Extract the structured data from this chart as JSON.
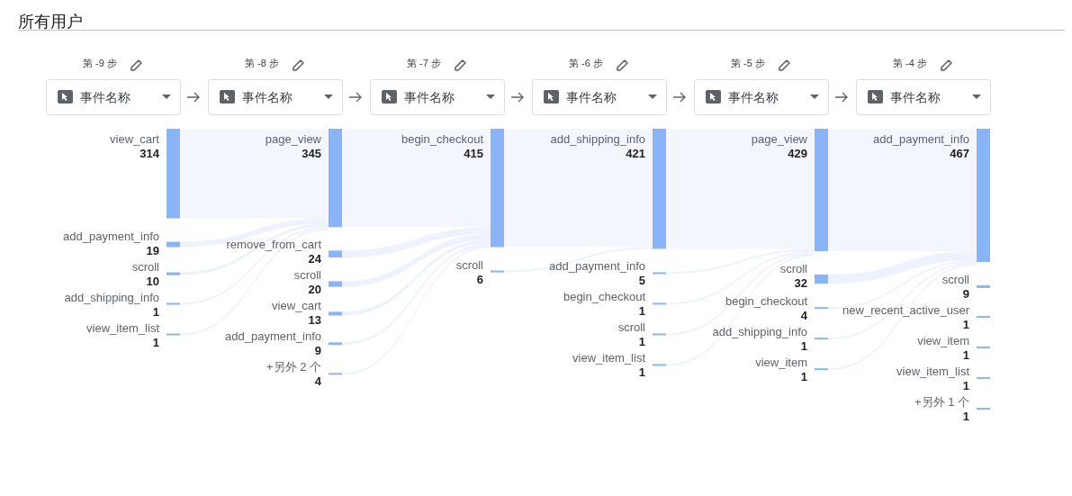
{
  "chart_data": [
    {
      "type": "other",
      "title": "所有用户"
    },
    {
      "type": "other",
      "title": "第 -9 步",
      "subtitle": "事件名称",
      "categories": [
        "view_cart",
        "add_payment_info",
        "scroll",
        "add_shipping_info",
        "view_item_list"
      ],
      "values": [
        314,
        19,
        10,
        1,
        1
      ],
      "color": "#8ab4f8",
      "data_labels": true
    },
    {
      "type": "other",
      "title": "第 -8 步",
      "subtitle": "事件名称",
      "categories": [
        "page_view",
        "remove_from_cart",
        "scroll",
        "view_cart",
        "add_payment_info",
        "+另外 2 个"
      ],
      "values": [
        345,
        24,
        20,
        13,
        9,
        4
      ],
      "color": "#8ab4f8",
      "data_labels": true
    },
    {
      "type": "other",
      "title": "第 -7 步",
      "subtitle": "事件名称",
      "categories": [
        "begin_checkout",
        "scroll"
      ],
      "values": [
        415,
        6
      ],
      "color": "#8ab4f8",
      "data_labels": true
    },
    {
      "type": "other",
      "title": "第 -6 步",
      "subtitle": "事件名称",
      "categories": [
        "add_shipping_info",
        "add_payment_info",
        "begin_checkout",
        "scroll",
        "view_item_list"
      ],
      "values": [
        421,
        5,
        1,
        1,
        1
      ],
      "color": "#8ab4f8",
      "data_labels": true
    },
    {
      "type": "other",
      "title": "第 -5 步",
      "subtitle": "事件名称",
      "categories": [
        "page_view",
        "scroll",
        "begin_checkout",
        "add_shipping_info",
        "view_item"
      ],
      "values": [
        429,
        32,
        4,
        1,
        1
      ],
      "color": "#8ab4f8",
      "data_labels": true
    },
    {
      "type": "other",
      "title": "第 -4 步",
      "subtitle": "事件名称",
      "categories": [
        "add_payment_info",
        "scroll",
        "new_recent_active_user",
        "view_item",
        "view_item_list",
        "+另外 1 个"
      ],
      "values": [
        467,
        9,
        1,
        1,
        1,
        1
      ],
      "color": "#8ab4f8",
      "data_labels": true
    }
  ]
}
